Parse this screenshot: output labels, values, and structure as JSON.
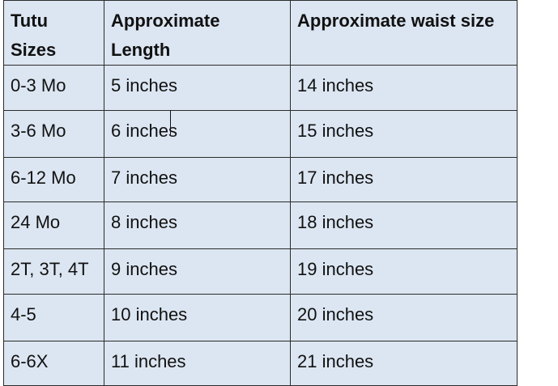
{
  "table": {
    "headers": [
      "Tutu Sizes",
      "Approximate Length",
      "Approximate waist size"
    ],
    "rows": [
      [
        "0-3 Mo",
        "5 inches",
        "14 inches"
      ],
      [
        "3-6 Mo",
        "6 inches",
        "15 inches"
      ],
      [
        "6-12 Mo",
        "7 inches",
        "17 inches"
      ],
      [
        "24 Mo",
        "8 inches",
        "18 inches"
      ],
      [
        "2T, 3T, 4T",
        "9 inches",
        "19 inches"
      ],
      [
        "4-5",
        "10 inches",
        "20 inches"
      ],
      [
        "6-6X",
        "11 inches",
        "21 inches"
      ]
    ]
  },
  "colors": {
    "cell_background": "#dce6f2",
    "border": "#2b2b2b"
  }
}
